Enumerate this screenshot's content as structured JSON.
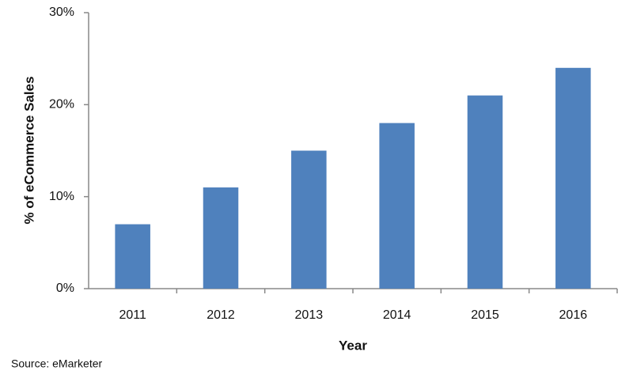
{
  "chart_data": {
    "type": "bar",
    "categories": [
      "2011",
      "2012",
      "2013",
      "2014",
      "2015",
      "2016"
    ],
    "values": [
      7,
      11,
      15,
      18,
      21,
      24
    ],
    "color": "#4f81bd",
    "ylim": [
      0,
      30
    ],
    "yticks": [
      {
        "value": 0,
        "label": "0%"
      },
      {
        "value": 10,
        "label": "10%"
      },
      {
        "value": 20,
        "label": "20%"
      },
      {
        "value": 30,
        "label": "30%"
      }
    ],
    "grid": false,
    "y_label": "% of eCommerce Sales",
    "x_label": "Year",
    "source": "Source: eMarketer"
  }
}
